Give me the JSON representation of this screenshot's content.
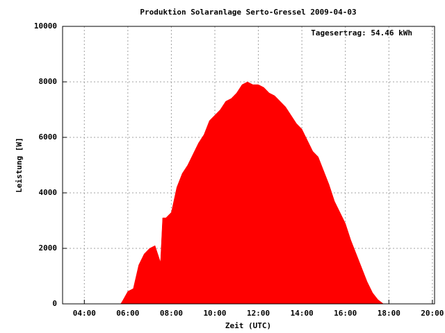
{
  "chart_data": {
    "type": "area",
    "title": "Produktion Solaranlage Serto-Gressel 2009-04-03",
    "annotation": "Tagesertrag: 54.46 kWh",
    "xlabel": "Zeit (UTC)",
    "ylabel": "Leistung [W]",
    "color": "#ff0000",
    "grid": true,
    "x": [
      5.67,
      5.75,
      6.0,
      6.25,
      6.5,
      6.75,
      7.0,
      7.25,
      7.5,
      7.6,
      7.75,
      8.0,
      8.25,
      8.5,
      8.75,
      9.0,
      9.25,
      9.5,
      9.75,
      10.0,
      10.25,
      10.5,
      10.75,
      11.0,
      11.25,
      11.5,
      11.75,
      12.0,
      12.25,
      12.5,
      12.75,
      13.0,
      13.25,
      13.5,
      13.75,
      14.0,
      14.25,
      14.5,
      14.75,
      15.0,
      15.25,
      15.5,
      15.75,
      16.0,
      16.25,
      16.5,
      16.75,
      17.0,
      17.25,
      17.5,
      17.75
    ],
    "values": [
      0,
      100,
      450,
      550,
      1400,
      1800,
      2000,
      2100,
      1500,
      3100,
      3100,
      3300,
      4200,
      4700,
      5000,
      5400,
      5800,
      6100,
      6600,
      6800,
      7000,
      7300,
      7400,
      7600,
      7900,
      8000,
      7900,
      7900,
      7800,
      7600,
      7500,
      7300,
      7100,
      6800,
      6500,
      6300,
      5900,
      5500,
      5300,
      4800,
      4300,
      3700,
      3300,
      2900,
      2300,
      1800,
      1300,
      800,
      400,
      150,
      0
    ],
    "xlim": [
      3,
      20.1
    ],
    "xticks": [
      {
        "value": 4,
        "label": "04:00"
      },
      {
        "value": 6,
        "label": "06:00"
      },
      {
        "value": 8,
        "label": "08:00"
      },
      {
        "value": 10,
        "label": "10:00"
      },
      {
        "value": 12,
        "label": "12:00"
      },
      {
        "value": 14,
        "label": "14:00"
      },
      {
        "value": 16,
        "label": "16:00"
      },
      {
        "value": 18,
        "label": "18:00"
      },
      {
        "value": 20,
        "label": "20:00"
      }
    ],
    "ylim": [
      0,
      10000
    ],
    "yticks": [
      0,
      2000,
      4000,
      6000,
      8000,
      10000
    ]
  }
}
